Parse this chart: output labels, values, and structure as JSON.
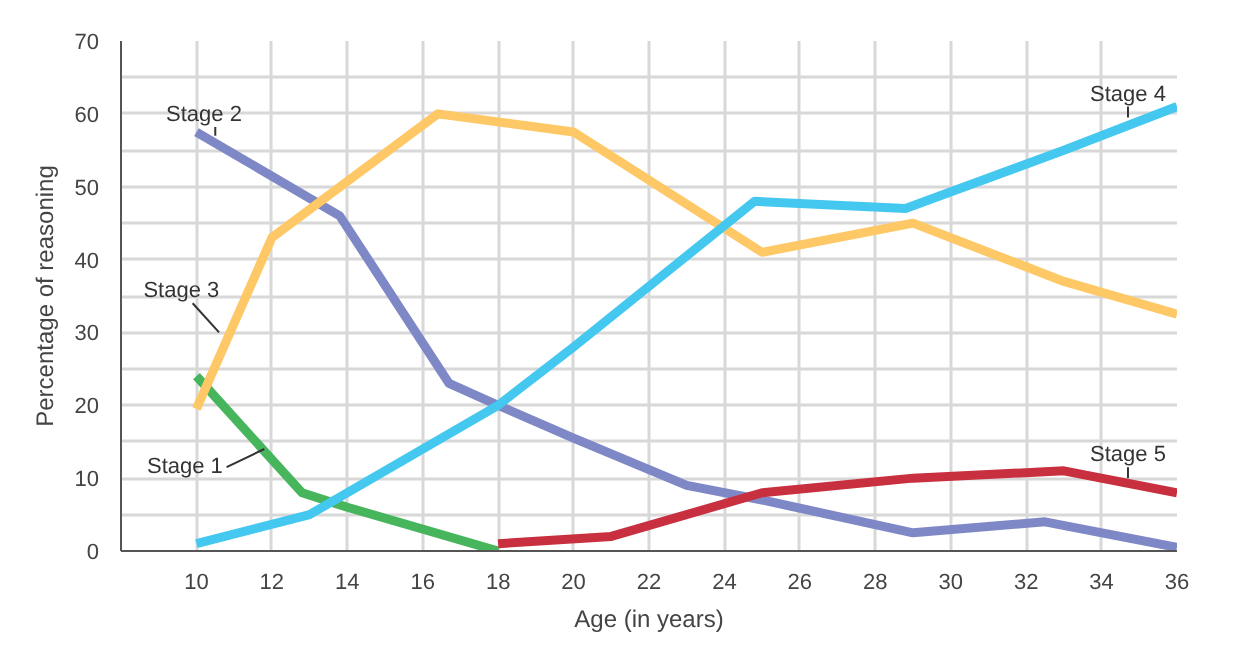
{
  "chart_data": {
    "type": "line",
    "xlabel": "Age (in years)",
    "ylabel": "Percentage of reasoning",
    "xlim": [
      8,
      36
    ],
    "xticks": [
      10,
      12,
      14,
      16,
      18,
      20,
      22,
      24,
      26,
      28,
      30,
      32,
      34,
      36
    ],
    "ylim": [
      0,
      70
    ],
    "yticks": [
      0,
      {
        "value": 5,
        "label": null
      },
      10,
      {
        "value": 15,
        "label": null
      },
      20,
      {
        "value": 25,
        "label": null
      },
      30,
      {
        "value": 35,
        "label": null
      },
      40,
      {
        "value": 45,
        "label": null
      },
      50,
      {
        "value": 55,
        "label": null
      },
      60,
      {
        "value": 65,
        "label": null
      },
      70
    ],
    "grid": true,
    "marker": "none",
    "line_style": "solid",
    "series": [
      {
        "color": "#47b55c",
        "x": [
          10,
          12.8,
          14,
          18
        ],
        "values": [
          24,
          8,
          6,
          0
        ]
      },
      {
        "color": "#7f88c6",
        "x": [
          10,
          13.8,
          16.7,
          18,
          20,
          23,
          25,
          29,
          32.5,
          36
        ],
        "values": [
          57.5,
          46,
          23,
          20,
          15.5,
          9,
          7,
          2.5,
          4,
          0.5
        ]
      },
      {
        "color": "#fdc865",
        "x": [
          10,
          12,
          16.4,
          20,
          25,
          29,
          33,
          36
        ],
        "values": [
          19.5,
          43,
          60,
          57.5,
          41,
          45,
          37,
          32.5
        ]
      },
      {
        "color": "#45c8f0",
        "x": [
          10,
          13,
          18,
          20,
          24.8,
          28.8,
          33,
          36
        ],
        "values": [
          1,
          5,
          20,
          28,
          48,
          47,
          55,
          61
        ]
      },
      {
        "color": "#c8303f",
        "x": [
          18,
          21,
          25,
          29,
          33,
          36
        ],
        "values": [
          1,
          2,
          8,
          10,
          11,
          8
        ]
      }
    ],
    "annotations": [
      {
        "text": "Stage 1",
        "x": 11.8,
        "y": 14
      },
      {
        "text": "Stage 2",
        "x": 10.5,
        "y": 57
      },
      {
        "text": "Stage 3",
        "x": 10.6,
        "y": 30
      },
      {
        "text": "Stage 4",
        "x": 34.7,
        "y": 59.5
      },
      {
        "text": "Stage 5",
        "x": 34.7,
        "y": 10
      }
    ]
  }
}
